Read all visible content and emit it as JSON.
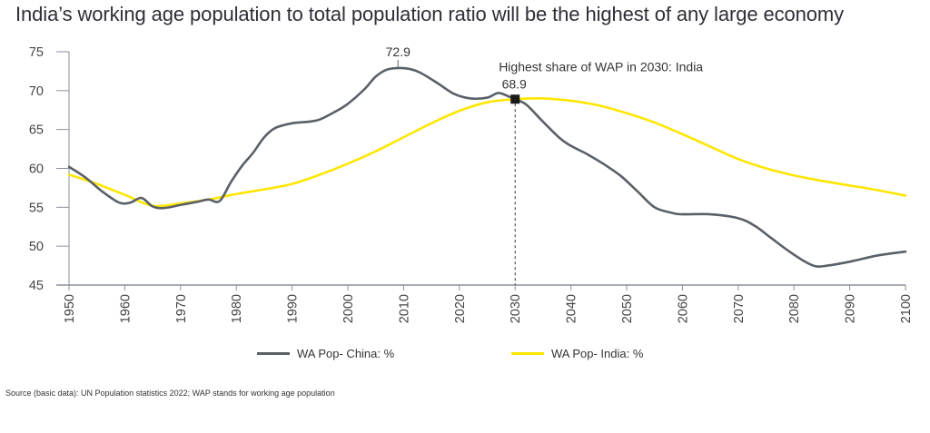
{
  "chart_data": {
    "type": "line",
    "title": "India’s working age population to total population ratio will be the highest of any large economy",
    "xlabel": "",
    "ylabel": "",
    "xlim": [
      1950,
      2100
    ],
    "ylim": [
      45,
      75
    ],
    "x_ticks": [
      1950,
      1960,
      1970,
      1980,
      1990,
      2000,
      2010,
      2020,
      2030,
      2040,
      2050,
      2060,
      2070,
      2080,
      2090,
      2100
    ],
    "y_ticks": [
      45,
      50,
      55,
      60,
      65,
      70,
      75
    ],
    "grid": false,
    "legend_position": "bottom",
    "series": [
      {
        "name": "WA Pop- China: %",
        "color": "#5a6068",
        "x": [
          1950,
          1953,
          1956,
          1959,
          1961,
          1963,
          1965,
          1967,
          1970,
          1973,
          1975,
          1977,
          1979,
          1981,
          1983,
          1985,
          1987,
          1990,
          1993,
          1995,
          1998,
          2000,
          2003,
          2005,
          2007,
          2009,
          2011,
          2013,
          2016,
          2019,
          2022,
          2025,
          2027,
          2029,
          2030,
          2032,
          2035,
          2038,
          2040,
          2043,
          2046,
          2049,
          2052,
          2055,
          2058,
          2060,
          2065,
          2070,
          2073,
          2076,
          2079,
          2082,
          2084,
          2086,
          2090,
          2095,
          2100
        ],
        "values": [
          60.2,
          58.8,
          57.0,
          55.6,
          55.6,
          56.2,
          55.1,
          54.9,
          55.3,
          55.7,
          56.0,
          55.8,
          58.2,
          60.3,
          62.0,
          64.0,
          65.2,
          65.8,
          66.0,
          66.3,
          67.4,
          68.3,
          70.2,
          71.8,
          72.7,
          72.9,
          72.8,
          72.3,
          71.0,
          69.6,
          69.0,
          69.1,
          69.7,
          69.2,
          68.9,
          68.2,
          66.0,
          63.9,
          62.9,
          61.8,
          60.5,
          59.0,
          57.0,
          55.0,
          54.3,
          54.1,
          54.1,
          53.6,
          52.6,
          51.0,
          49.4,
          48.0,
          47.4,
          47.5,
          48.0,
          48.8,
          49.3
        ]
      },
      {
        "name": "WA Pop- India: %",
        "color": "#ffe600",
        "x": [
          1950,
          1955,
          1960,
          1965,
          1970,
          1975,
          1980,
          1985,
          1990,
          1995,
          2000,
          2005,
          2010,
          2015,
          2020,
          2025,
          2030,
          2035,
          2040,
          2045,
          2050,
          2055,
          2060,
          2065,
          2070,
          2075,
          2080,
          2085,
          2090,
          2095,
          2100
        ],
        "values": [
          59.2,
          58.0,
          56.6,
          55.2,
          55.5,
          56.0,
          56.7,
          57.3,
          58.0,
          59.2,
          60.6,
          62.2,
          64.0,
          65.8,
          67.4,
          68.5,
          68.9,
          69.0,
          68.7,
          68.1,
          67.1,
          65.9,
          64.4,
          62.8,
          61.2,
          60.0,
          59.1,
          58.4,
          57.8,
          57.2,
          56.5
        ]
      }
    ],
    "annotations": [
      {
        "text": "72.9",
        "x": 2009,
        "y": 72.9,
        "target": "China peak"
      },
      {
        "text": "Highest share of WAP in 2030: India",
        "x": 2030,
        "y": 68.9
      },
      {
        "text": "68.9",
        "x": 2030,
        "y": 68.9
      }
    ],
    "marker": {
      "x": 2030,
      "y": 68.9
    },
    "source_note": "Source (basic data): UN Population statistics 2022; WAP stands for working age population"
  },
  "labels": {
    "title": "India’s working age population to total population ratio will be the highest of any large economy",
    "legend_china": "WA Pop- China: %",
    "legend_india": "WA Pop- India: %",
    "source": "Source (basic data): UN Population statistics 2022; WAP stands for working age population",
    "peak_label": "72.9",
    "highlight_label": "Highest share of WAP in 2030: India",
    "highlight_value": "68.9"
  },
  "colors": {
    "china": "#5a6068",
    "india": "#ffe600",
    "axis": "#8a919c",
    "marker": "#1a1a1a"
  }
}
